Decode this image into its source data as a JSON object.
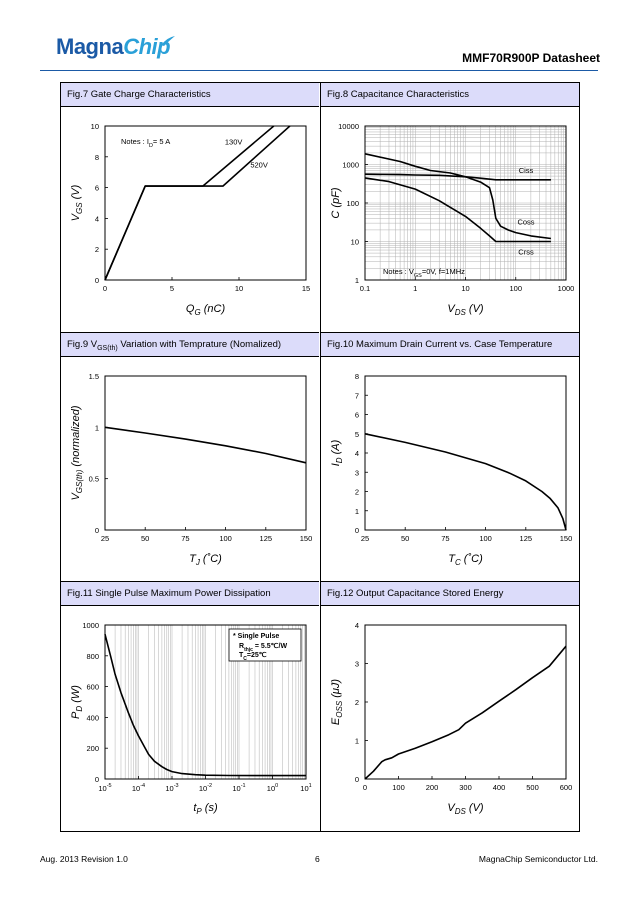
{
  "header": {
    "logo_part1": "Magna",
    "logo_part2": "Chip",
    "doc_title": "MMF70R900P Datasheet"
  },
  "footer": {
    "left": "Aug. 2013 Revision 1.0",
    "page": "6",
    "right": "MagnaChip Semiconductor Ltd."
  },
  "colors": {
    "logo_blue": "#1b5aa6",
    "logo_cyan": "#2aa0d8",
    "title_bar": "#dcdcfa"
  },
  "chart_data": [
    {
      "id": "fig7",
      "panel_title": "Fig.7 Gate Charge Characteristics",
      "type": "line",
      "xscale": "linear",
      "yscale": "linear",
      "xlim": [
        0,
        15
      ],
      "ylim": [
        0,
        10
      ],
      "xticks": [
        "0",
        "5",
        "10",
        "15"
      ],
      "yticks": [
        "0",
        "2",
        "4",
        "6",
        "8",
        "10"
      ],
      "grid": false,
      "xlabel": {
        "main": "Q",
        "sub": "G",
        "unit": " (nC)"
      },
      "ylabel": {
        "main": "V",
        "sub": "GS",
        "unit": " (V)"
      },
      "notes": {
        "prefix": "Notes : I",
        "sub": "D",
        "rest": "= 5 A"
      },
      "series": [
        {
          "name": "130V",
          "x": [
            0,
            3.0,
            7.3,
            12.6
          ],
          "y": [
            0,
            6.1,
            6.1,
            10.0
          ]
        },
        {
          "name": "520V",
          "x": [
            0,
            3.0,
            8.8,
            13.8
          ],
          "y": [
            0,
            6.1,
            6.1,
            10.0
          ]
        }
      ],
      "annotations": [
        {
          "text": "130V",
          "x": 9.6,
          "y": 8.8
        },
        {
          "text": "520V",
          "x": 11.5,
          "y": 7.3
        }
      ]
    },
    {
      "id": "fig8",
      "panel_title": "Fig.8 Capacitance Characteristics",
      "type": "line",
      "xscale": "log",
      "yscale": "log",
      "xlim": [
        0.1,
        1000
      ],
      "ylim": [
        1,
        10000
      ],
      "xticks": [
        "0.1",
        "1",
        "10",
        "100",
        "1000"
      ],
      "yticks": [
        "1",
        "10",
        "100",
        "1000",
        "10000"
      ],
      "grid": true,
      "xlabel": {
        "main": "V",
        "sub": "DS",
        "unit": " (V)"
      },
      "ylabel": {
        "main": "C",
        "sub": "",
        "unit": " (pF)"
      },
      "notes": {
        "prefix": "Notes : V",
        "sub": "GS",
        "rest": "=0V, f=1MHz"
      },
      "series": [
        {
          "name": "Ciss",
          "x": [
            0.1,
            0.5,
            1,
            3,
            10,
            20,
            40,
            100,
            500
          ],
          "y": [
            560,
            545,
            535,
            525,
            480,
            440,
            400,
            400,
            400
          ]
        },
        {
          "name": "Coss",
          "x": [
            0.1,
            0.5,
            1,
            2,
            5,
            10,
            20,
            30,
            35,
            40,
            50,
            70,
            100,
            200,
            500
          ],
          "y": [
            1900,
            1200,
            900,
            700,
            600,
            480,
            350,
            250,
            120,
            40,
            25,
            20,
            17,
            14,
            12
          ]
        },
        {
          "name": "Crss",
          "x": [
            0.1,
            0.3,
            1,
            3,
            10,
            20,
            30,
            40,
            50,
            100,
            500
          ],
          "y": [
            450,
            360,
            230,
            115,
            45,
            22,
            14,
            10,
            10,
            10,
            10
          ]
        }
      ],
      "annotations": [
        {
          "text": "Ciss",
          "x": 160,
          "y": 600
        },
        {
          "text": "Coss",
          "x": 160,
          "y": 28
        },
        {
          "text": "Crss",
          "x": 160,
          "y": 4.6
        }
      ]
    },
    {
      "id": "fig9",
      "panel_title_main": "Fig.9 V",
      "panel_title_sub": "GS(th)",
      "panel_title_rest": " Variation with Temprature (Nomalized)",
      "type": "line",
      "xscale": "linear",
      "yscale": "linear",
      "xlim": [
        25,
        150
      ],
      "ylim": [
        0,
        1.5
      ],
      "xticks": [
        "25",
        "50",
        "75",
        "100",
        "125",
        "150"
      ],
      "yticks": [
        "0",
        "0.5",
        "1",
        "1.5"
      ],
      "grid": false,
      "xlabel": {
        "main": "T",
        "sub": "J",
        "unit": " (˚C)"
      },
      "ylabel": {
        "main": "V",
        "sub": "GS(th)",
        "unit": " (normalized)"
      },
      "series": [
        {
          "name": "",
          "x": [
            25,
            50,
            75,
            100,
            125,
            150
          ],
          "y": [
            1.0,
            0.945,
            0.885,
            0.82,
            0.745,
            0.655
          ]
        }
      ]
    },
    {
      "id": "fig10",
      "panel_title": "Fig.10 Maximum Drain Current vs. Case Temperature",
      "type": "line",
      "xscale": "linear",
      "yscale": "linear",
      "xlim": [
        25,
        150
      ],
      "ylim": [
        0,
        8
      ],
      "xticks": [
        "25",
        "50",
        "75",
        "100",
        "125",
        "150"
      ],
      "yticks": [
        "0",
        "1",
        "2",
        "3",
        "4",
        "5",
        "6",
        "7",
        "8"
      ],
      "grid": false,
      "xlabel": {
        "main": "T",
        "sub": "C",
        "unit": " (˚C)"
      },
      "ylabel": {
        "main": "I",
        "sub": "D",
        "unit": " (A)"
      },
      "series": [
        {
          "name": "",
          "x": [
            25,
            50,
            75,
            100,
            115,
            125,
            135,
            140,
            145,
            148,
            150
          ],
          "y": [
            5.0,
            4.55,
            4.05,
            3.45,
            2.95,
            2.55,
            2.0,
            1.65,
            1.15,
            0.6,
            0.0
          ]
        }
      ]
    },
    {
      "id": "fig11",
      "panel_title": "Fig.11 Single Pulse Maximum Power Dissipation",
      "type": "line",
      "xscale": "log",
      "yscale": "linear",
      "xlim": [
        1e-05,
        10
      ],
      "ylim": [
        0,
        1000
      ],
      "xticks": [
        {
          "base": "10",
          "exp": "-5"
        },
        {
          "base": "10",
          "exp": "-4"
        },
        {
          "base": "10",
          "exp": "-3"
        },
        {
          "base": "10",
          "exp": "-2"
        },
        {
          "base": "10",
          "exp": "-1"
        },
        {
          "base": "10",
          "exp": "0"
        },
        {
          "base": "10",
          "exp": "1"
        }
      ],
      "yticks": [
        "0",
        "200",
        "400",
        "600",
        "800",
        "1000"
      ],
      "grid": true,
      "xlabel": {
        "main": "t",
        "sub": "P",
        "unit": " (s)"
      },
      "ylabel": {
        "main": "P",
        "sub": "D",
        "unit": " (W)"
      },
      "legend": {
        "line1": "* Single Pulse",
        "line2_main": "R",
        "line2_sub": "thjc",
        "line2_rest": " = 5.5℃/W",
        "line3_main": "T",
        "line3_sub": "C",
        "line3_rest": "=25℃"
      },
      "series": [
        {
          "name": "",
          "x": [
            1e-05,
            1.5e-05,
            2e-05,
            3e-05,
            5e-05,
            7e-05,
            0.0001,
            0.00015,
            0.0002,
            0.0003,
            0.0005,
            0.0007,
            0.001,
            0.002,
            0.005,
            0.01,
            0.05,
            1,
            10
          ],
          "y": [
            940,
            790,
            680,
            560,
            430,
            350,
            280,
            210,
            160,
            115,
            80,
            62,
            48,
            35,
            28,
            25,
            23,
            22,
            22
          ]
        }
      ]
    },
    {
      "id": "fig12",
      "panel_title": "Fig.12 Output Capacitance Stored Energy",
      "type": "line",
      "xscale": "linear",
      "yscale": "linear",
      "xlim": [
        0,
        600
      ],
      "ylim": [
        0,
        4
      ],
      "xticks": [
        "0",
        "100",
        "200",
        "300",
        "400",
        "500",
        "600"
      ],
      "yticks": [
        "0",
        "1",
        "2",
        "3",
        "4"
      ],
      "grid": false,
      "xlabel": {
        "main": "V",
        "sub": "DS",
        "unit": " (V)"
      },
      "ylabel": {
        "main": "E",
        "sub": "OSS",
        "unit": " (μJ)"
      },
      "series": [
        {
          "name": "",
          "x": [
            0,
            25,
            50,
            60,
            80,
            100,
            150,
            200,
            250,
            280,
            300,
            350,
            400,
            450,
            500,
            550,
            600
          ],
          "y": [
            0,
            0.2,
            0.45,
            0.5,
            0.55,
            0.65,
            0.8,
            0.97,
            1.15,
            1.28,
            1.45,
            1.72,
            2.02,
            2.32,
            2.63,
            2.93,
            3.45
          ]
        }
      ]
    }
  ]
}
